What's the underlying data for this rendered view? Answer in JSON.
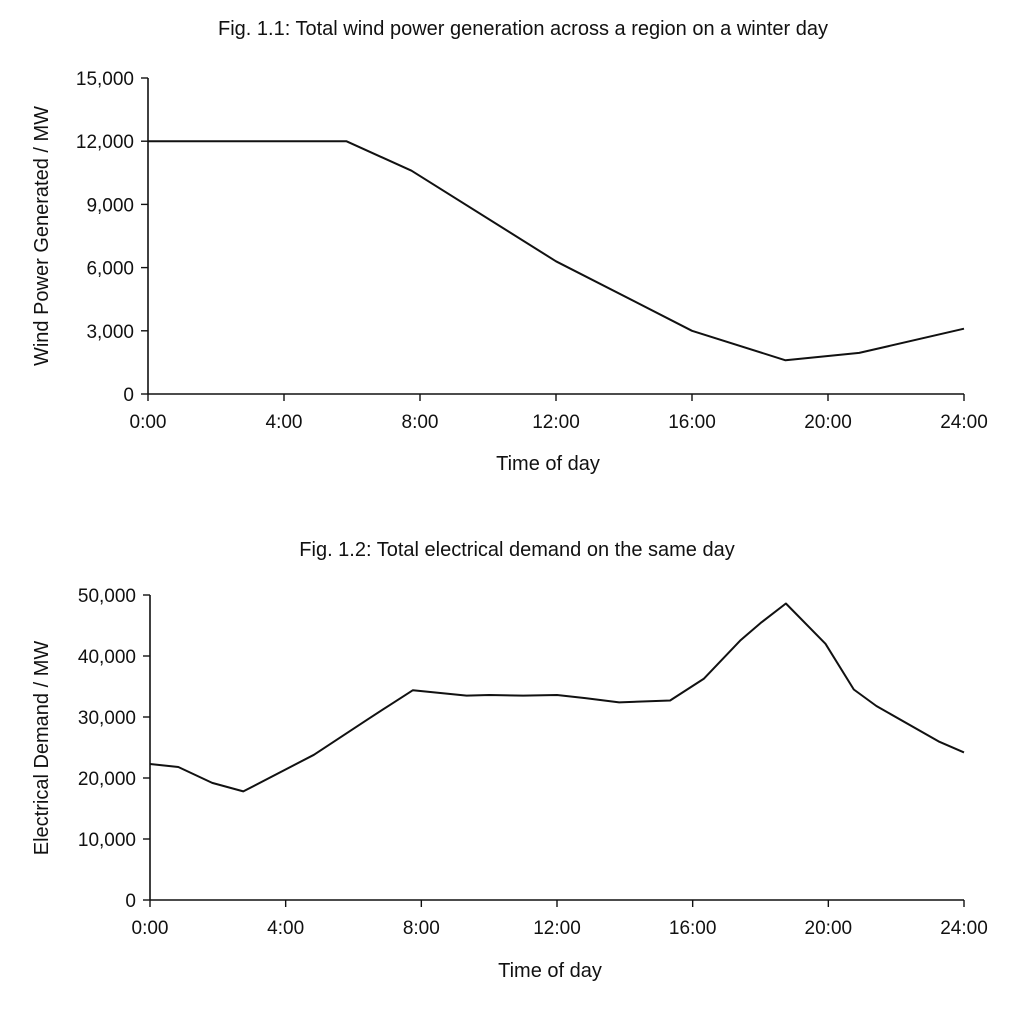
{
  "chart_data": [
    {
      "type": "line",
      "title": "Fig. 1.1: Total wind power generation across a region on a winter day",
      "xlabel": "Time of day",
      "ylabel": "Wind Power Generated / MW",
      "xlim": [
        "0:00",
        "24:00"
      ],
      "ylim": [
        0,
        15000
      ],
      "xticks": [
        "0:00",
        "4:00",
        "8:00",
        "12:00",
        "16:00",
        "20:00",
        "24:00"
      ],
      "yticks": [
        "0",
        "3,000",
        "6,000",
        "9,000",
        "12,000",
        "15,000"
      ],
      "grid": false,
      "x": [
        "0:00",
        "5:50",
        "7:45",
        "12:00",
        "16:00",
        "18:45",
        "20:55",
        "24:00"
      ],
      "values": [
        12000,
        12000,
        10600,
        6300,
        3000,
        1600,
        1950,
        3100
      ]
    },
    {
      "type": "line",
      "title": "Fig. 1.2: Total electrical demand on the same day",
      "xlabel": "Time of day",
      "ylabel": "Electrical Demand / MW",
      "xlim": [
        "0:00",
        "24:00"
      ],
      "ylim": [
        0,
        50000
      ],
      "xticks": [
        "0:00",
        "4:00",
        "8:00",
        "12:00",
        "16:00",
        "20:00",
        "24:00"
      ],
      "yticks": [
        "0",
        "10,000",
        "20,000",
        "30,000",
        "40,000",
        "50,000"
      ],
      "grid": false,
      "x": [
        "0:00",
        "0:50",
        "1:50",
        "2:45",
        "4:50",
        "6:25",
        "7:05",
        "7:45",
        "9:20",
        "10:00",
        "11:00",
        "12:00",
        "12:50",
        "13:50",
        "15:20",
        "16:20",
        "17:25",
        "18:00",
        "18:45",
        "19:55",
        "20:45",
        "21:25",
        "23:15",
        "24:00"
      ],
      "values": [
        22300,
        21800,
        19200,
        17800,
        23800,
        29600,
        32000,
        34400,
        33500,
        33600,
        33500,
        33600,
        33100,
        32400,
        32700,
        36300,
        42600,
        45400,
        48600,
        42000,
        34500,
        31800,
        26000,
        24200
      ]
    }
  ]
}
